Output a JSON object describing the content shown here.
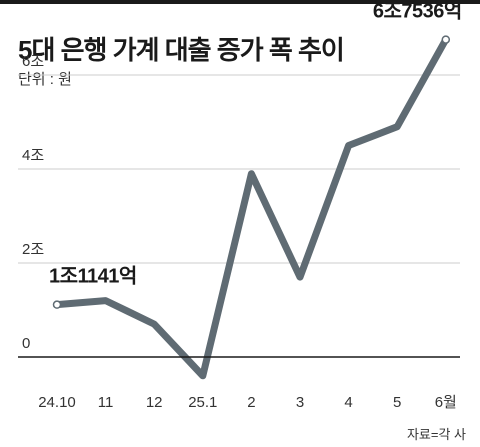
{
  "title": "5대 은행 가계 대출 증가 폭 추이",
  "unit_label": "단위 : 원",
  "source": "자료=각 사",
  "colors": {
    "line": "#5f6b73",
    "grid": "#cccccc",
    "baseline": "#1a1a1a",
    "text": "#1a1a1a"
  },
  "chart_data": {
    "type": "line",
    "title": "5대 은행 가계 대출 증가 폭 추이",
    "xlabel": "",
    "ylabel": "단위 : 원",
    "categories": [
      "24.10",
      "11",
      "12",
      "25.1",
      "2",
      "3",
      "4",
      "5",
      "6월"
    ],
    "series": [
      {
        "values": [
          1.1141,
          1.2,
          0.7,
          -0.4,
          3.9,
          1.7,
          4.5,
          4.9,
          6.7536
        ]
      }
    ],
    "yticks": [
      {
        "value": 0,
        "label": "0"
      },
      {
        "value": 2,
        "label": "2조"
      },
      {
        "value": 4,
        "label": "4조"
      },
      {
        "value": 6,
        "label": "6조"
      }
    ],
    "ylim": [
      -0.5,
      7
    ],
    "grid": true,
    "annotations": [
      {
        "index": 0,
        "text": "1조1141억"
      },
      {
        "index": 8,
        "text": "6조7536억"
      }
    ]
  }
}
